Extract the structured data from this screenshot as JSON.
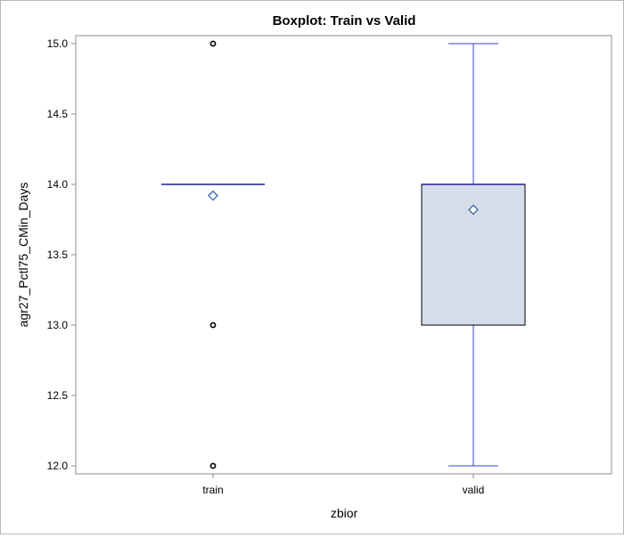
{
  "chart_data": {
    "type": "boxplot",
    "title": "Boxplot: Train vs Valid",
    "xlabel": "zbior",
    "ylabel": "agr27_Pctl75_CMin_Days",
    "ylim": [
      12.0,
      15.0
    ],
    "yticks": [
      "12.0",
      "12.5",
      "13.0",
      "13.5",
      "14.0",
      "14.5",
      "15.0"
    ],
    "ytick_values": [
      12.0,
      12.5,
      13.0,
      13.5,
      14.0,
      14.5,
      15.0
    ],
    "grid": false,
    "categories": [
      "train",
      "valid"
    ],
    "boxes": [
      {
        "category": "train",
        "q1": 14.0,
        "median": 14.0,
        "q3": 14.0,
        "whisker_low": 14.0,
        "whisker_high": 14.0,
        "mean": 13.92,
        "outliers": [
          15.0,
          13.0,
          12.0
        ]
      },
      {
        "category": "valid",
        "q1": 13.0,
        "median": 14.0,
        "q3": 14.0,
        "whisker_low": 12.0,
        "whisker_high": 15.0,
        "mean": 13.82,
        "outliers": []
      }
    ],
    "colors": {
      "box_fill": "#d5dde9",
      "box_stroke": "#000000",
      "whisker": "#3c3cd4",
      "median": "#1f1f9f",
      "mean_marker": "#2d5e9e",
      "outlier": "#000000",
      "axis": "#8c8c8c"
    }
  }
}
